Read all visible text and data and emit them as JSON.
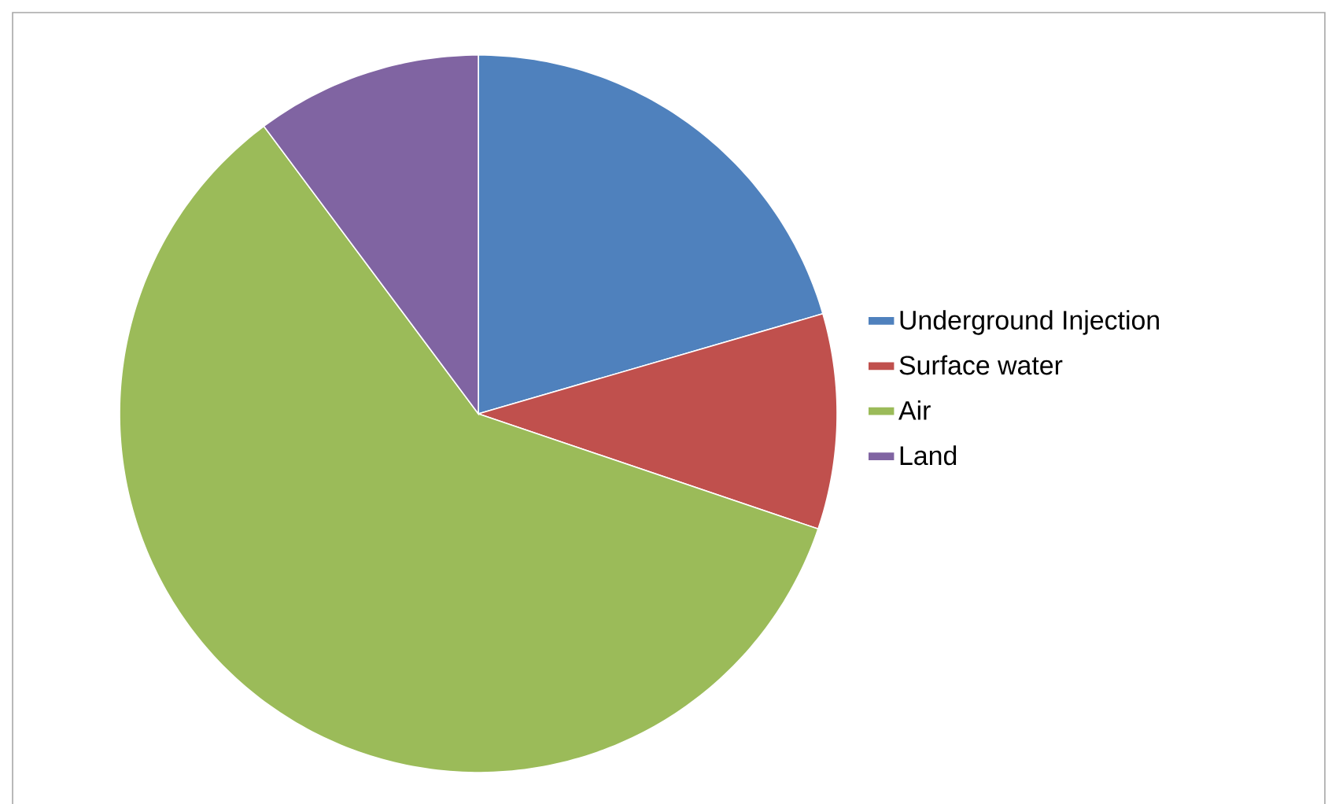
{
  "chart_data": {
    "type": "pie",
    "categories": [
      "Underground Injection",
      "Surface water",
      "Air",
      "Land"
    ],
    "values": [
      20.5,
      9.7,
      59.6,
      10.2
    ],
    "colors": [
      "#4f81bd",
      "#c0504d",
      "#9bbb59",
      "#8064a2"
    ],
    "legend": "right"
  }
}
